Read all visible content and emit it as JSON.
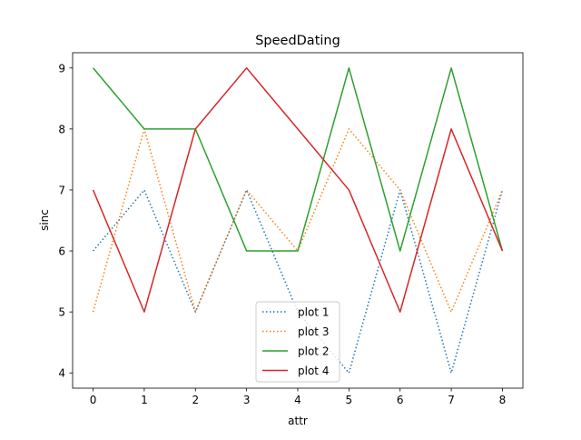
{
  "chart_data": {
    "type": "line",
    "title": "SpeedDating",
    "xlabel": "attr",
    "ylabel": "sinc",
    "x": [
      0,
      1,
      2,
      3,
      4,
      5,
      6,
      7,
      8
    ],
    "xlim": [
      -0.4,
      8.4
    ],
    "ylim": [
      3.75,
      9.25
    ],
    "xticks": [
      "0",
      "1",
      "2",
      "3",
      "4",
      "5",
      "6",
      "7",
      "8"
    ],
    "yticks": [
      "4",
      "5",
      "6",
      "7",
      "8",
      "9"
    ],
    "grid": false,
    "legend_position": "bottom-center",
    "series": [
      {
        "name": "plot 1",
        "values": [
          6,
          7,
          5,
          7,
          5,
          4,
          7,
          4,
          7
        ],
        "color": "#1f77b4",
        "linestyle": "dotted"
      },
      {
        "name": "plot 3",
        "values": [
          5,
          8,
          5,
          7,
          6,
          8,
          7,
          5,
          7
        ],
        "color": "#ff7f0e",
        "linestyle": "dotted"
      },
      {
        "name": "plot 2",
        "values": [
          9,
          8,
          8,
          6,
          6,
          9,
          6,
          9,
          6
        ],
        "color": "#2ca02c",
        "linestyle": "solid"
      },
      {
        "name": "plot 4",
        "values": [
          7,
          5,
          8,
          9,
          8,
          7,
          5,
          8,
          6
        ],
        "color": "#d62728",
        "linestyle": "solid"
      }
    ]
  }
}
